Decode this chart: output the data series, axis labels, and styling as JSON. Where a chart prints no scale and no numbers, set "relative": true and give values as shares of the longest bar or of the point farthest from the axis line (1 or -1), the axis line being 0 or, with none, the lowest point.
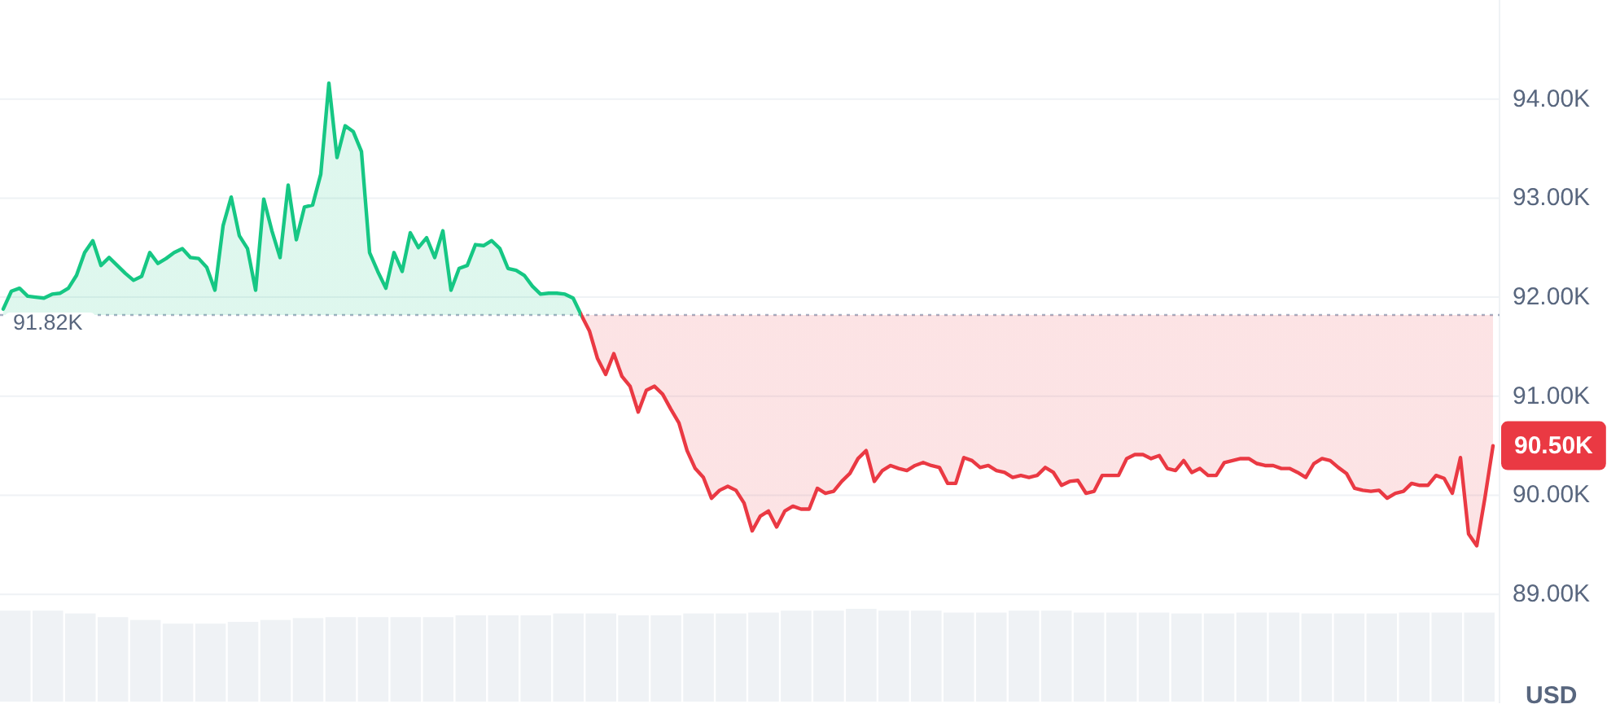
{
  "chart_data": [
    {
      "type": "area",
      "categories": [
        null,
        null,
        null,
        null,
        null,
        null,
        null,
        null,
        null,
        null,
        null,
        null,
        null,
        null,
        null,
        null,
        null,
        null,
        null,
        null,
        null,
        null,
        null,
        null,
        null,
        null,
        null,
        null,
        null,
        null,
        null,
        null,
        null,
        null,
        null,
        null,
        null,
        null,
        null,
        null,
        null,
        null,
        null,
        null,
        null,
        null,
        null,
        null,
        null,
        null,
        null,
        null,
        null,
        null,
        null,
        null,
        null,
        null,
        null,
        null,
        null,
        null,
        null,
        null,
        null,
        null,
        null,
        null,
        null,
        null,
        null,
        null,
        null,
        null,
        null,
        null,
        null,
        null,
        null,
        null,
        null,
        null,
        null,
        null,
        null,
        null,
        null,
        null,
        null,
        null,
        null,
        null,
        null,
        null,
        null,
        null,
        null,
        null,
        null,
        null,
        null,
        null,
        null,
        null,
        null,
        null,
        null,
        null,
        null,
        null,
        null,
        null,
        null,
        null,
        null,
        null,
        null,
        null,
        null,
        null,
        null,
        null,
        null,
        null,
        null,
        null,
        null,
        null,
        null,
        null,
        null,
        null,
        null,
        null,
        null,
        null,
        null,
        null,
        null,
        null,
        null,
        null,
        null,
        null,
        null,
        null,
        null,
        null,
        null,
        null,
        null,
        null,
        null,
        null,
        null,
        null,
        null,
        null,
        null,
        null,
        null,
        null,
        null,
        null,
        null,
        null,
        null,
        null,
        null,
        null,
        null,
        null,
        null,
        null,
        null,
        null,
        null,
        null,
        null,
        null,
        null,
        null,
        null,
        null
      ],
      "values": [
        91.88,
        92.06,
        92.09,
        92.01,
        92.0,
        91.99,
        92.03,
        92.04,
        92.09,
        92.22,
        92.45,
        92.57,
        92.32,
        92.4,
        92.32,
        92.24,
        92.17,
        92.21,
        92.45,
        92.34,
        92.39,
        92.45,
        92.49,
        92.4,
        92.39,
        92.3,
        92.07,
        92.72,
        93.01,
        92.62,
        92.49,
        92.07,
        92.99,
        92.67,
        92.4,
        93.13,
        92.58,
        92.91,
        92.93,
        93.24,
        94.16,
        93.41,
        93.73,
        93.67,
        93.47,
        92.45,
        92.26,
        92.09,
        92.45,
        92.26,
        92.65,
        92.5,
        92.6,
        92.4,
        92.67,
        92.07,
        92.29,
        92.32,
        92.53,
        92.52,
        92.57,
        92.49,
        92.29,
        92.27,
        92.22,
        92.11,
        92.03,
        92.04,
        92.04,
        92.03,
        91.99,
        91.82,
        91.66,
        91.38,
        91.22,
        91.43,
        91.2,
        91.1,
        90.84,
        91.06,
        91.1,
        91.02,
        90.87,
        90.73,
        90.45,
        90.27,
        90.18,
        89.97,
        90.05,
        90.09,
        90.05,
        89.92,
        89.64,
        89.79,
        89.84,
        89.68,
        89.84,
        89.89,
        89.86,
        89.86,
        90.07,
        90.02,
        90.04,
        90.14,
        90.22,
        90.37,
        90.45,
        90.14,
        90.25,
        90.3,
        90.27,
        90.25,
        90.3,
        90.33,
        90.3,
        90.28,
        90.12,
        90.12,
        90.38,
        90.35,
        90.28,
        90.3,
        90.25,
        90.23,
        90.18,
        90.2,
        90.18,
        90.2,
        90.28,
        90.23,
        90.1,
        90.14,
        90.15,
        90.02,
        90.04,
        90.2,
        90.2,
        90.2,
        90.37,
        90.41,
        90.41,
        90.37,
        90.4,
        90.27,
        90.25,
        90.35,
        90.23,
        90.27,
        90.2,
        90.2,
        90.33,
        90.35,
        90.37,
        90.37,
        90.32,
        90.3,
        90.3,
        90.27,
        90.27,
        90.23,
        90.18,
        90.32,
        90.37,
        90.35,
        90.28,
        90.22,
        90.07,
        90.05,
        90.04,
        90.05,
        89.97,
        90.02,
        90.04,
        90.12,
        90.1,
        90.1,
        90.2,
        90.17,
        90.02,
        90.38,
        89.61,
        89.49,
        89.97,
        90.5
      ],
      "colors": [
        "#16c784",
        "#16c784",
        "#16c784",
        "#16c784",
        "#16c784",
        "#16c784",
        "#16c784",
        "#16c784",
        "#16c784",
        "#16c784",
        "#16c784",
        "#16c784",
        "#16c784",
        "#16c784",
        "#16c784",
        "#16c784",
        "#16c784",
        "#16c784",
        "#16c784",
        "#16c784",
        "#16c784",
        "#16c784",
        "#16c784",
        "#16c784",
        "#16c784",
        "#16c784",
        "#16c784",
        "#16c784",
        "#16c784",
        "#16c784",
        "#16c784",
        "#16c784",
        "#16c784",
        "#16c784",
        "#16c784",
        "#16c784",
        "#16c784",
        "#16c784",
        "#16c784",
        "#16c784",
        "#16c784",
        "#16c784",
        "#16c784",
        "#16c784",
        "#16c784",
        "#16c784",
        "#16c784",
        "#16c784",
        "#16c784",
        "#16c784",
        "#16c784",
        "#16c784",
        "#16c784",
        "#16c784",
        "#16c784",
        "#16c784",
        "#16c784",
        "#16c784",
        "#16c784",
        "#16c784",
        "#16c784",
        "#16c784",
        "#16c784",
        "#16c784",
        "#16c784",
        "#16c784",
        "#16c784",
        "#16c784",
        "#16c784",
        "#16c784",
        "#16c784",
        "#16c784",
        "#ea3943",
        "#ea3943",
        "#ea3943",
        "#ea3943",
        "#ea3943",
        "#ea3943",
        "#ea3943",
        "#ea3943",
        "#ea3943",
        "#ea3943",
        "#ea3943",
        "#ea3943",
        "#ea3943",
        "#ea3943",
        "#ea3943",
        "#ea3943",
        "#ea3943",
        "#ea3943",
        "#ea3943",
        "#ea3943",
        "#ea3943",
        "#ea3943",
        "#ea3943",
        "#ea3943",
        "#ea3943",
        "#ea3943",
        "#ea3943",
        "#ea3943",
        "#ea3943",
        "#ea3943",
        "#ea3943",
        "#ea3943",
        "#ea3943",
        "#ea3943",
        "#ea3943",
        "#ea3943",
        "#ea3943",
        "#ea3943",
        "#ea3943",
        "#ea3943",
        "#ea3943",
        "#ea3943",
        "#ea3943",
        "#ea3943",
        "#ea3943",
        "#ea3943",
        "#ea3943",
        "#ea3943",
        "#ea3943",
        "#ea3943",
        "#ea3943",
        "#ea3943",
        "#ea3943",
        "#ea3943",
        "#ea3943",
        "#ea3943",
        "#ea3943",
        "#ea3943",
        "#ea3943",
        "#ea3943",
        "#ea3943",
        "#ea3943",
        "#ea3943",
        "#ea3943",
        "#ea3943",
        "#ea3943",
        "#ea3943",
        "#ea3943",
        "#ea3943",
        "#ea3943",
        "#ea3943",
        "#ea3943",
        "#ea3943",
        "#ea3943",
        "#ea3943",
        "#ea3943",
        "#ea3943",
        "#ea3943",
        "#ea3943",
        "#ea3943",
        "#ea3943",
        "#ea3943",
        "#ea3943",
        "#ea3943",
        "#ea3943",
        "#ea3943",
        "#ea3943",
        "#ea3943",
        "#ea3943",
        "#ea3943",
        "#ea3943",
        "#ea3943",
        "#ea3943",
        "#ea3943",
        "#ea3943",
        "#ea3943",
        "#ea3943",
        "#ea3943",
        "#ea3943",
        "#ea3943",
        "#ea3943",
        "#ea3943",
        "#ea3943",
        "#ea3943",
        "#ea3943",
        "#ea3943",
        "#ea3943",
        "#ea3943",
        "#ea3943",
        "#ea3943",
        "#ea3943",
        "#ea3943"
      ],
      "ylim": [
        87.9,
        95.0
      ],
      "yticks": [
        {
          "value": 89,
          "label": "89.00K"
        },
        {
          "value": 90,
          "label": "90.00K"
        },
        {
          "value": 91,
          "label": "91.00K"
        },
        {
          "value": 92,
          "label": "92.00K"
        },
        {
          "value": 93,
          "label": "93.00K"
        },
        {
          "value": 94,
          "label": "94.00K"
        }
      ],
      "ylabel": "USD",
      "grid": "y",
      "tick_labels": "y",
      "ref_lines": [
        {
          "axis": "y",
          "value": 91.82,
          "label": "91.82K",
          "color": "#a6b0c3",
          "line_style": "dotted"
        }
      ],
      "annotations": [
        "90.50K"
      ]
    },
    {
      "type": "bar",
      "relative": true,
      "color": "#eff2f5",
      "categories": [
        null,
        null,
        null,
        null,
        null,
        null,
        null,
        null,
        null,
        null,
        null,
        null,
        null,
        null,
        null,
        null,
        null,
        null,
        null,
        null,
        null,
        null,
        null,
        null,
        null,
        null,
        null,
        null,
        null,
        null,
        null,
        null,
        null,
        null,
        null,
        null,
        null,
        null,
        null,
        null,
        null,
        null,
        null,
        null,
        null,
        null
      ],
      "values": [
        0.98,
        0.98,
        0.95,
        0.91,
        0.88,
        0.84,
        0.84,
        0.86,
        0.88,
        0.9,
        0.91,
        0.91,
        0.91,
        0.91,
        0.93,
        0.93,
        0.93,
        0.95,
        0.95,
        0.93,
        0.93,
        0.95,
        0.95,
        0.96,
        0.98,
        0.98,
        1,
        0.98,
        0.98,
        0.96,
        0.96,
        0.98,
        0.98,
        0.96,
        0.96,
        0.96,
        0.95,
        0.95,
        0.96,
        0.96,
        0.95,
        0.95,
        0.95,
        0.96,
        0.96,
        0.96
      ]
    }
  ]
}
